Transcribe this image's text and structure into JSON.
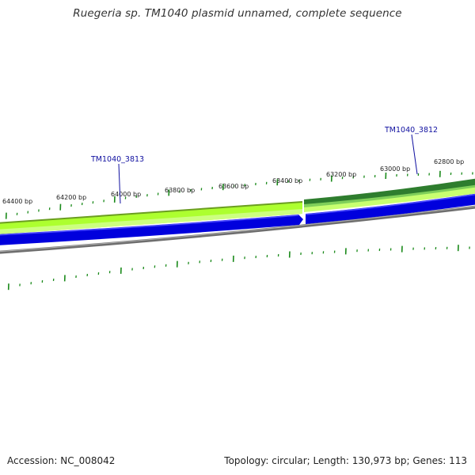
{
  "title": "Ruegeria sp. TM1040 plasmid unnamed, complete sequence",
  "scale_labels": [
    "64400 bp",
    "64200 bp",
    "64000 bp",
    "63800 bp",
    "63600 bp",
    "63400 bp",
    "63200 bp",
    "63000 bp",
    "62800 bp"
  ],
  "genes": [
    {
      "name": "TM1040_3813",
      "strand": "forward",
      "color": "#9acd32"
    },
    {
      "name": "TM1040_3812",
      "strand": "forward",
      "color": "#2e8b2e"
    }
  ],
  "colors": {
    "cds_lightgreen": "#adff2f",
    "cds_darkgreen": "#2e7d2e",
    "strand_blue": "#0000dd",
    "backbone_gray": "#808080",
    "tick_green": "#1a8a1a",
    "gene_label_blue": "#1010a0"
  },
  "footer": {
    "accession": "Accession: NC_008042",
    "summary": "Topology: circular; Length: 130,973 bp; Genes: 113"
  }
}
